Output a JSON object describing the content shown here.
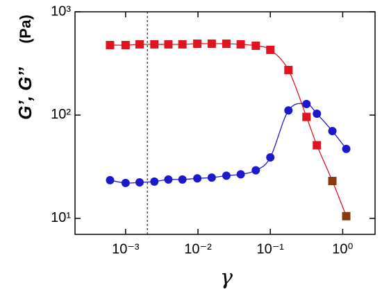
{
  "chart_data": {
    "type": "scatter",
    "xlabel": "γ",
    "ylabel": "G’, G’’",
    "yunit": "(Pa)",
    "log_x": true,
    "log_y": true,
    "xlim": [
      0.0002,
      2.8
    ],
    "ylim": [
      7,
      1000
    ],
    "xticks": [
      {
        "value": 0.001,
        "label": "10⁻³"
      },
      {
        "value": 0.01,
        "label": "10⁻²"
      },
      {
        "value": 0.1,
        "label": "10⁻¹"
      },
      {
        "value": 1,
        "label": "10⁰"
      }
    ],
    "yticks": [
      {
        "value": 10,
        "label": "10¹"
      },
      {
        "value": 100,
        "label": "10²"
      },
      {
        "value": 1000,
        "label": "10³"
      }
    ],
    "vline": 0.002,
    "x": [
      0.00061,
      0.001,
      0.00156,
      0.0025,
      0.0039,
      0.0061,
      0.0098,
      0.0155,
      0.0247,
      0.039,
      0.063,
      0.1,
      0.178,
      0.316,
      0.44,
      0.72,
      1.12
    ],
    "series": [
      {
        "marker": "square",
        "color": "#e0141e",
        "point_colors": [
          "#e0141e",
          "#e0141e",
          "#e0141e",
          "#e0141e",
          "#e0141e",
          "#e0141e",
          "#e0141e",
          "#e0141e",
          "#e0141e",
          "#e0141e",
          "#e0141e",
          "#e0141e",
          "#e0141e",
          "#e0141e",
          "#e0141e",
          "#8b3a10",
          "#8b3a10"
        ],
        "values": [
          476,
          476,
          484,
          484,
          484,
          484,
          491,
          491,
          491,
          484,
          469,
          428,
          273,
          96,
          51,
          23,
          10.5
        ]
      },
      {
        "marker": "circle",
        "color": "#1a1acc",
        "values": [
          23.4,
          22,
          22.3,
          22.7,
          23.8,
          23.8,
          24.4,
          24.8,
          25.9,
          26.7,
          29.2,
          38.9,
          111,
          128,
          103,
          70,
          47
        ]
      }
    ]
  }
}
